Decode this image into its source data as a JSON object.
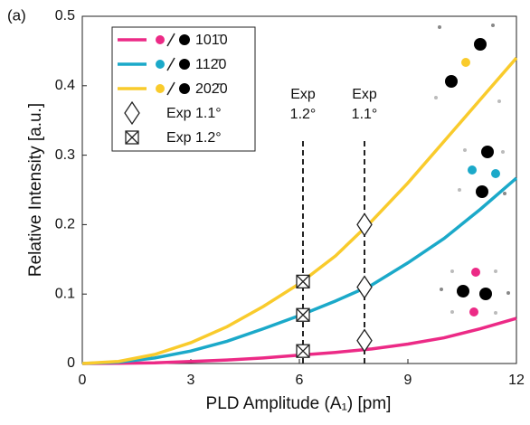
{
  "chart_data": {
    "type": "line",
    "panel_label": "(a)",
    "xlabel": "PLD Amplitude (A₁) [pm]",
    "ylabel": "Relative Intensity [a.u.]",
    "xlim": [
      0,
      12
    ],
    "xticks": [
      0,
      3,
      6,
      9,
      12
    ],
    "ylim": [
      0,
      0.5
    ],
    "yticks": [
      0,
      0.1,
      0.2,
      0.3,
      0.4,
      0.5
    ],
    "grid": false,
    "legend": "upper left",
    "x": [
      0,
      1,
      2,
      3,
      4,
      5,
      6,
      7,
      8,
      9,
      10,
      11,
      12
    ],
    "series": [
      {
        "name": "101̄0",
        "color": "#ec2a86",
        "values": [
          0,
          0.0003,
          0.001,
          0.003,
          0.005,
          0.008,
          0.012,
          0.016,
          0.021,
          0.028,
          0.037,
          0.05,
          0.065
        ]
      },
      {
        "name": "112̄0",
        "color": "#1ba9c9",
        "values": [
          0,
          0.002,
          0.008,
          0.018,
          0.032,
          0.05,
          0.069,
          0.09,
          0.113,
          0.145,
          0.18,
          0.222,
          0.267
        ]
      },
      {
        "name": "202̄0",
        "color": "#f9cb2c",
        "values": [
          0,
          0.003,
          0.013,
          0.03,
          0.053,
          0.082,
          0.115,
          0.155,
          0.205,
          0.26,
          0.32,
          0.38,
          0.44
        ]
      }
    ],
    "markers": [
      {
        "name": "Exp 1.1°",
        "marker": "diamond",
        "x": [
          7.8,
          7.8,
          7.8
        ],
        "values": [
          0.2,
          0.11,
          0.033
        ]
      },
      {
        "name": "Exp 1.2°",
        "marker": "boxed-x",
        "x": [
          6.1,
          6.1,
          6.1
        ],
        "values": [
          0.118,
          0.07,
          0.018
        ]
      }
    ],
    "annotations": [
      [
        "Exp",
        "1.1°"
      ],
      [
        "Exp",
        "1.2°"
      ]
    ]
  }
}
